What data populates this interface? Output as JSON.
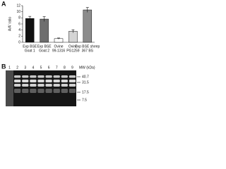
{
  "panel_labels": [
    "A",
    "B"
  ],
  "chart_data": {
    "type": "bar",
    "y_label": "A/A' ratio",
    "categories": [
      [
        "Exp BSE",
        "Goat 1"
      ],
      [
        "Exp BSE",
        "Goat 2"
      ],
      [
        "Ovine",
        "99-1316"
      ],
      [
        "Ovine",
        "PG1259"
      ],
      [
        "Exp BSE sheep",
        "367 BS"
      ]
    ],
    "values": [
      7.8,
      7.6,
      1.2,
      3.6,
      10.6
    ],
    "errors": [
      0.7,
      0.8,
      0.2,
      0.5,
      0.8
    ],
    "colors": [
      "#111111",
      "#6e6e6e",
      "#ffffff",
      "#d4d4d4",
      "#8c8c8c"
    ],
    "ylim": [
      0,
      12
    ],
    "yticks": [
      0,
      2,
      4,
      6,
      8,
      10,
      12
    ]
  },
  "blot": {
    "lane_numbers": [
      1,
      2,
      3,
      4,
      5,
      6,
      7,
      8,
      9
    ],
    "mw_title": "MW (kDa)",
    "mw_markers": [
      40.7,
      31.5,
      17.5,
      7.5
    ]
  }
}
